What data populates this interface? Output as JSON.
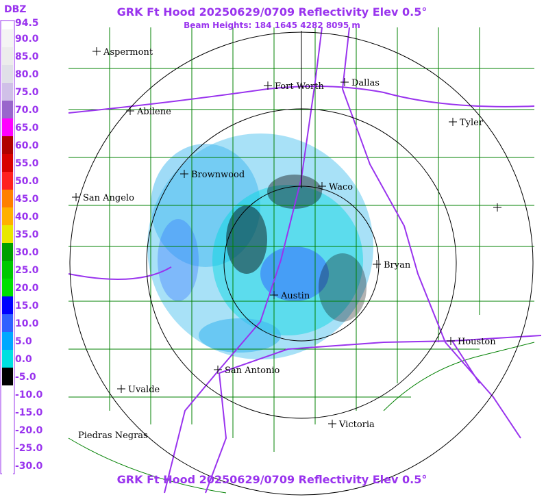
{
  "header": {
    "title": "GRK Ft Hood 20250629/0709 Reflectivity Elev 0.5°",
    "subtitle": "Beam Heights: 184 1645 4282 8095 m"
  },
  "legend": {
    "unit": "DBZ",
    "labels": [
      "94.5",
      "90.0",
      "85.0",
      "80.0",
      "75.0",
      "70.0",
      "65.0",
      "60.0",
      "55.0",
      "50.0",
      "45.0",
      "40.0",
      "35.0",
      "30.0",
      "25.0",
      "20.0",
      "15.0",
      "10.0",
      "5.0",
      "0.0",
      "-5.0",
      "-10.0",
      "-15.0",
      "-20.0",
      "-25.0",
      "-30.0"
    ],
    "colors": [
      "#ffffff",
      "#f4f4f4",
      "#ececec",
      "#e0e0e8",
      "#d0c0e8",
      "#9966cc",
      "#ff00ff",
      "#b00000",
      "#d80000",
      "#ff2020",
      "#ff8000",
      "#ffb000",
      "#e8e800",
      "#00a000",
      "#00c800",
      "#00e000",
      "#0000ff",
      "#3060ff",
      "#00a8ff",
      "#00e0e0",
      "#000000",
      "#ffffff",
      "#ffffff",
      "#ffffff",
      "#ffffff",
      "#ffffff"
    ]
  },
  "cities": [
    "Aspermont",
    "Fort Worth",
    "Dallas",
    "Abilene",
    "Tyler",
    "Brownwood",
    "Waco",
    "San Angelo",
    "Bryan",
    "Austin",
    "Houston",
    "San Antonio",
    "Uvalde",
    "Victoria",
    "Piedras Negras"
  ],
  "footer": {
    "title": "GRK Ft Hood 20250629/0709 Reflectivity Elev 0.5°"
  }
}
